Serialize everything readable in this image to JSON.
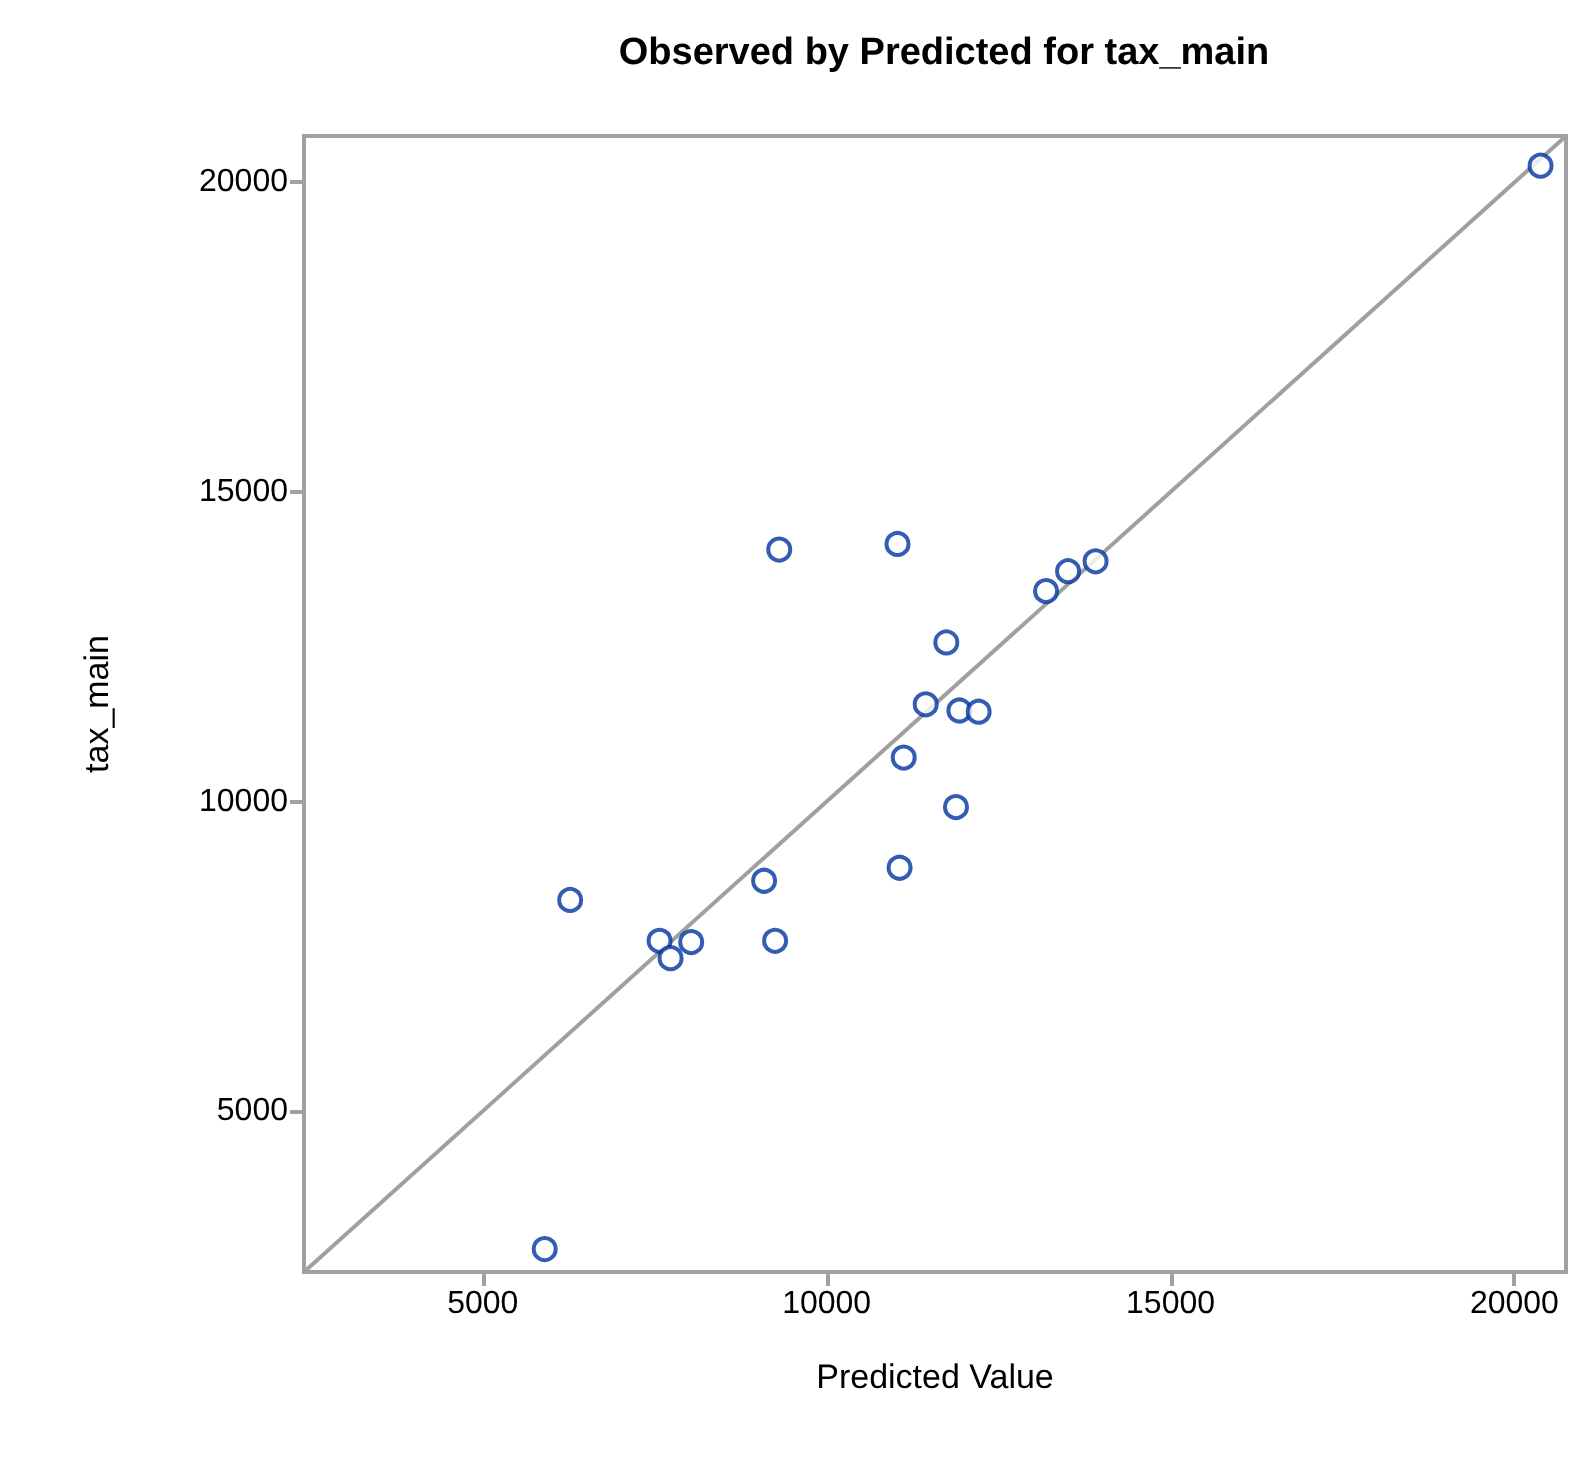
{
  "chart_data": {
    "type": "scatter",
    "title": "Observed by Predicted for tax_main",
    "xlabel": "Predicted Value",
    "ylabel": "tax_main",
    "xlim": [
      2400,
      20750
    ],
    "ylim": [
      2400,
      20750
    ],
    "xticks": [
      5000,
      10000,
      15000,
      20000
    ],
    "yticks": [
      5000,
      10000,
      15000,
      20000
    ],
    "grid": false,
    "series": [
      {
        "marker": "circle",
        "color": "#0033a0",
        "x": [
          11440,
          11930,
          12210,
          11120,
          11880,
          11060,
          9090,
          6270,
          7570,
          8030,
          7730,
          9250,
          5900,
          20380,
          9310,
          11030,
          13190,
          13510,
          13910,
          11740
        ],
        "values": [
          11570,
          11470,
          11450,
          10710,
          9910,
          8930,
          8720,
          8410,
          7750,
          7730,
          7470,
          7750,
          2770,
          20270,
          14070,
          14160,
          13400,
          13720,
          13880,
          12570
        ]
      },
      {
        "type": "line",
        "marker": "none",
        "color": "#a0a0a0",
        "line_style": "solid",
        "x": [
          2400,
          20750
        ],
        "values": [
          2400,
          20750
        ]
      }
    ]
  }
}
